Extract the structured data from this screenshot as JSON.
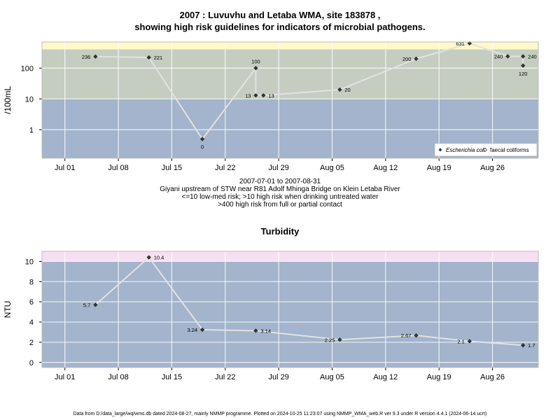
{
  "title_line1": "2007 : Luvuvhu and Letaba WMA, site 183878 ,",
  "title_line2": "showing high risk guidelines for indicators of microbial pathogens.",
  "subtitle": {
    "date_range": "2007-07-01 to 2007-08-31",
    "site_desc": "Giyani upstream of STW near R81 Adolf Mhinga Bridge on Klein Letaba River",
    "risk1": "<=10 low-med risk; >10 high risk when drinking untreated water",
    "risk2": ">400 high risk from full or partial contact"
  },
  "turbidity_title": "Turbidity",
  "footer": "Data from D:/data_large/wq/wms.db dated 2024-08-27, mainly NMMP programme. Plotted on 2024-10-25 11:23:07 using NMMP_WMA_web.R ver 9.3 under R version 4.4.1 (2024-06-14 ucrt)",
  "colors": {
    "panel_bg": "#a3b4cc",
    "band_mid": "#c5cdc0",
    "band_high_micro": "#fdf9c9",
    "band_high_turb": "#f7dff2",
    "line": "#e2e2e2",
    "grid": "#ffffff",
    "point": "#333333"
  },
  "chart_data": [
    {
      "type": "line",
      "ylabel": "/100mL",
      "y_scale": "log10",
      "ylim": [
        0.12,
        700
      ],
      "y_ticks": [
        1,
        10,
        100
      ],
      "y_tick_labels": [
        "1",
        "10",
        "100"
      ],
      "xlim": [
        "2007-06-28",
        "2007-09-01"
      ],
      "x_ticks": [
        "2007-07-01",
        "2007-07-08",
        "2007-07-15",
        "2007-07-22",
        "2007-07-29",
        "2007-08-05",
        "2007-08-12",
        "2007-08-19",
        "2007-08-26"
      ],
      "x_tick_labels": [
        "Jul 01",
        "Jul 08",
        "Jul 15",
        "Jul 22",
        "Jul 29",
        "Aug 05",
        "Aug 12",
        "Aug 19",
        "Aug 26"
      ],
      "bands": [
        {
          "from": 10,
          "to": 400,
          "color": "#c5cdc0"
        },
        {
          "from": 400,
          "to": 700,
          "color": "#fdf9c9"
        }
      ],
      "legend": {
        "position": "bottom-right",
        "entries": [
          "Escherichia coli",
          "faecal coliforms"
        ]
      },
      "series": [
        {
          "name": "Escherichia coli",
          "points": [
            {
              "x": "2007-07-05",
              "y": 236,
              "label": "236",
              "lpos": "left"
            },
            {
              "x": "2007-07-12",
              "y": 221,
              "label": "221",
              "lpos": "right"
            },
            {
              "x": "2007-07-19",
              "y": 0.5,
              "label": "0",
              "lpos": "below"
            },
            {
              "x": "2007-07-26",
              "y": 100,
              "label": "100",
              "lpos": "above"
            },
            {
              "x": "2007-07-26",
              "y": 13,
              "label": "13",
              "lpos": "left"
            },
            {
              "x": "2007-07-27",
              "y": 13,
              "label": "13",
              "lpos": "right"
            },
            {
              "x": "2007-08-06",
              "y": 20,
              "label": "20",
              "lpos": "right"
            },
            {
              "x": "2007-08-16",
              "y": 200,
              "label": "200",
              "lpos": "left"
            },
            {
              "x": "2007-08-23",
              "y": 631,
              "label": "631",
              "lpos": "left"
            },
            {
              "x": "2007-08-28",
              "y": 240,
              "label": "240",
              "lpos": "left"
            },
            {
              "x": "2007-08-30",
              "y": 240,
              "label": "240",
              "lpos": "right"
            },
            {
              "x": "2007-08-30",
              "y": 120,
              "label": "120",
              "lpos": "below"
            }
          ]
        }
      ]
    },
    {
      "type": "line",
      "title": "Turbidity",
      "ylabel": "NTU",
      "ylim": [
        -0.5,
        11
      ],
      "y_ticks": [
        0,
        2,
        4,
        6,
        8,
        10
      ],
      "y_tick_labels": [
        "0",
        "2",
        "4",
        "6",
        "8",
        "10"
      ],
      "xlim": [
        "2007-06-28",
        "2007-09-01"
      ],
      "x_ticks": [
        "2007-07-01",
        "2007-07-08",
        "2007-07-15",
        "2007-07-22",
        "2007-07-29",
        "2007-08-05",
        "2007-08-12",
        "2007-08-19",
        "2007-08-26"
      ],
      "x_tick_labels": [
        "Jul 01",
        "Jul 08",
        "Jul 15",
        "Jul 22",
        "Jul 29",
        "Aug 05",
        "Aug 12",
        "Aug 19",
        "Aug 26"
      ],
      "bands": [
        {
          "from": 10,
          "to": 11,
          "color": "#f7dff2"
        }
      ],
      "series": [
        {
          "points": [
            {
              "x": "2007-07-05",
              "y": 5.7,
              "label": "5.7",
              "lpos": "left"
            },
            {
              "x": "2007-07-12",
              "y": 10.4,
              "label": "10.4",
              "lpos": "right"
            },
            {
              "x": "2007-07-19",
              "y": 3.24,
              "label": "3.24",
              "lpos": "left"
            },
            {
              "x": "2007-07-26",
              "y": 3.14,
              "label": "3.14",
              "lpos": "right"
            },
            {
              "x": "2007-08-06",
              "y": 2.25,
              "label": "2.25",
              "lpos": "left"
            },
            {
              "x": "2007-08-16",
              "y": 2.67,
              "label": "2.67",
              "lpos": "left"
            },
            {
              "x": "2007-08-23",
              "y": 2.1,
              "label": "2.1",
              "lpos": "left"
            },
            {
              "x": "2007-08-30",
              "y": 1.7,
              "label": "1.7",
              "lpos": "right"
            }
          ]
        }
      ]
    }
  ]
}
